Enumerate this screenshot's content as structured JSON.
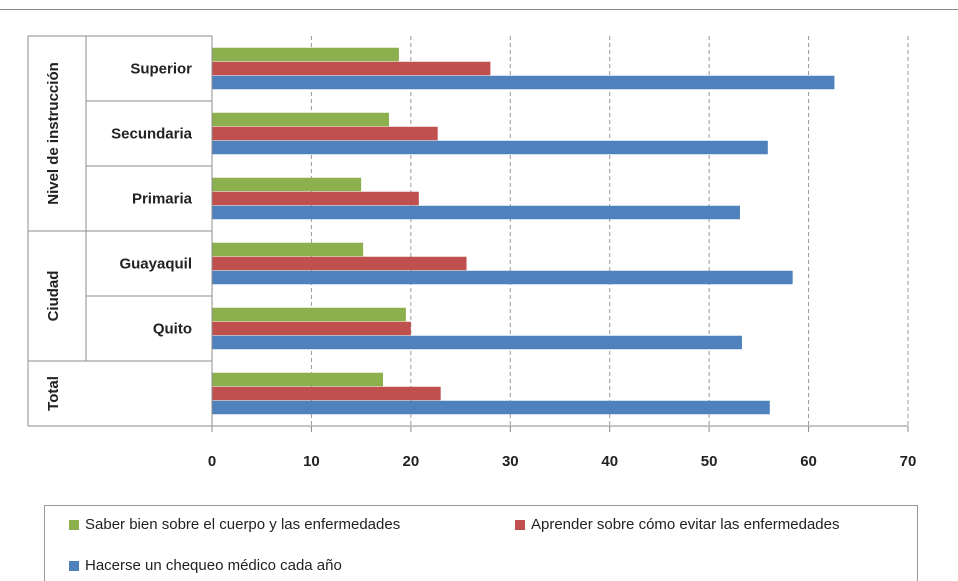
{
  "chart_data": {
    "type": "bar",
    "orientation": "horizontal",
    "groups": [
      {
        "label": "Nivel de instrucción",
        "categories": [
          "Superior",
          "Secundaria",
          "Primaria"
        ]
      },
      {
        "label": "Ciudad",
        "categories": [
          "Guayaquil",
          "Quito"
        ]
      },
      {
        "label": "Total",
        "categories": [
          ""
        ]
      }
    ],
    "categories": [
      "Superior",
      "Secundaria",
      "Primaria",
      "Guayaquil",
      "Quito",
      ""
    ],
    "series": [
      {
        "name": "Saber bien sobre el cuerpo y las enfermedades",
        "color": "#8db04f",
        "values": [
          18.8,
          17.8,
          15.0,
          15.2,
          19.5,
          17.2
        ]
      },
      {
        "name": "Aprender sobre cómo evitar las enfermedades",
        "color": "#c0504d",
        "values": [
          28.0,
          22.7,
          20.8,
          25.6,
          20.0,
          23.0
        ]
      },
      {
        "name": "Hacerse un chequeo médico cada año",
        "color": "#4f81bd",
        "values": [
          62.6,
          55.9,
          53.1,
          58.4,
          53.3,
          56.1
        ]
      }
    ],
    "xlim": [
      0,
      70
    ],
    "xticks": [
      "0",
      "10",
      "20",
      "30",
      "40",
      "50",
      "60",
      "70"
    ],
    "grid": "vertical dashed",
    "legend_position": "bottom"
  }
}
